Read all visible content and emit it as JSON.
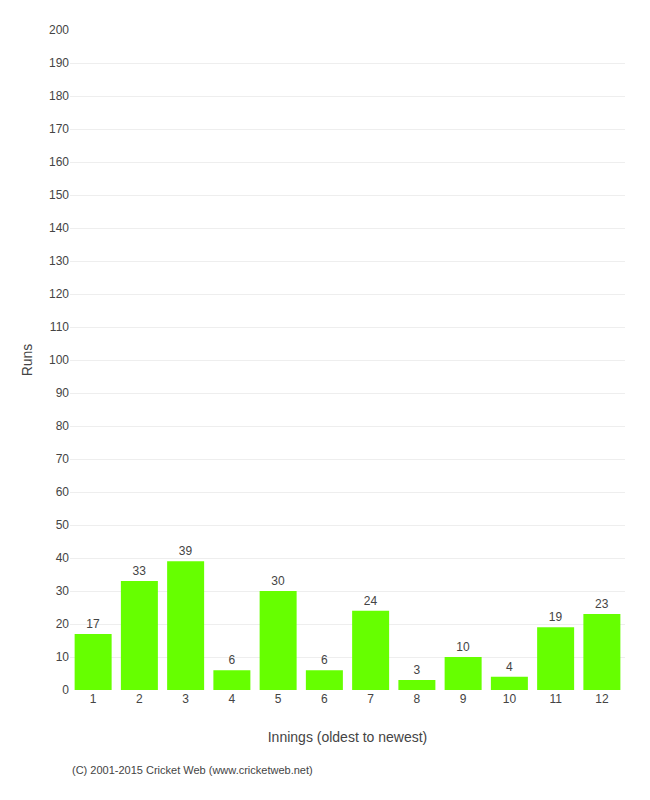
{
  "chart_data": {
    "type": "bar",
    "xlabel": "Innings (oldest to newest)",
    "ylabel": "Runs",
    "categories": [
      "1",
      "2",
      "3",
      "4",
      "5",
      "6",
      "7",
      "8",
      "9",
      "10",
      "11",
      "12"
    ],
    "values": [
      17,
      33,
      39,
      6,
      30,
      6,
      24,
      3,
      10,
      4,
      19,
      23
    ],
    "color": "#66ff00",
    "ylim": [
      0,
      200
    ],
    "yticks": [
      0,
      10,
      20,
      30,
      40,
      50,
      60,
      70,
      80,
      90,
      100,
      110,
      120,
      130,
      140,
      150,
      160,
      170,
      180,
      190,
      200
    ],
    "grid": true,
    "data_labels": true,
    "annotations": [
      "(C) 2001-2015 Cricket Web (www.cricketweb.net)"
    ]
  }
}
